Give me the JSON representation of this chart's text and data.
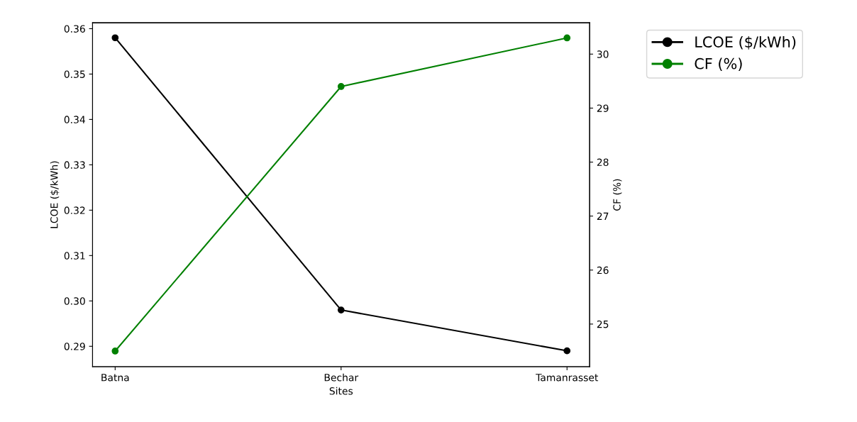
{
  "chart_data": {
    "type": "line",
    "xlabel": "Sites",
    "ylabel": "LCOE ($/kWh)",
    "y2label": "CF (%)",
    "categories": [
      "Batna",
      "Bechar",
      "Tamanrasset"
    ],
    "series": [
      {
        "name": "LCOE ($/kWh)",
        "color": "#000000",
        "values": [
          0.358,
          0.298,
          0.289
        ]
      },
      {
        "name": "CF (%)",
        "color": "#008000",
        "values": [
          24.5,
          29.4,
          30.3
        ],
        "axis": "y2"
      }
    ],
    "ylim": [
      0.2855,
      0.3613
    ],
    "yticks": [
      0.29,
      {
        "value": 0.3,
        "label": "0.30"
      },
      0.31,
      0.32,
      0.33,
      0.34,
      0.35,
      0.36
    ],
    "y2lim": [
      24.21,
      30.58
    ],
    "y2ticks": [
      25,
      26,
      27,
      28,
      29,
      30
    ],
    "marker": "circle",
    "line_style": "solid",
    "grid": false,
    "legend": "top right"
  }
}
